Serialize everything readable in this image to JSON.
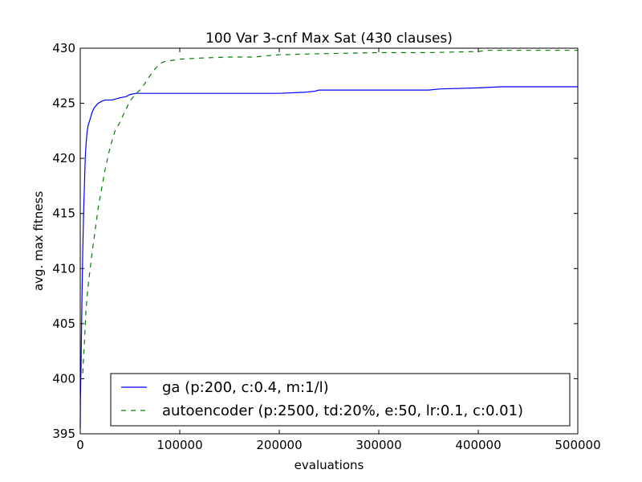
{
  "chart_data": {
    "type": "line",
    "title": "100 Var 3-cnf Max Sat (430 clauses)",
    "xlabel": "evaluations",
    "ylabel": "avg. max fitness",
    "xlim": [
      0,
      500000
    ],
    "ylim": [
      395,
      430
    ],
    "xticks": [
      0,
      100000,
      200000,
      300000,
      400000,
      500000
    ],
    "yticks": [
      395,
      400,
      405,
      410,
      415,
      420,
      425,
      430
    ],
    "grid": false,
    "legend": "lower-center",
    "series": [
      {
        "name": "ga (p:200, c:0.4, m:1/l)",
        "color": "#0000ff",
        "style": "solid",
        "x": [
          0,
          200,
          400,
          800,
          1200,
          1600,
          2000,
          2500,
          3000,
          3500,
          4000,
          4500,
          5000,
          6000,
          7000,
          8000,
          9000,
          10000,
          12000,
          14000,
          16000,
          18000,
          20000,
          22000,
          25000,
          28000,
          32000,
          36000,
          40000,
          46000,
          50000,
          56000,
          60000,
          100000,
          150000,
          200000,
          225000,
          236000,
          240000,
          300000,
          350000,
          362000,
          400000,
          424000,
          460000,
          500000
        ],
        "y": [
          395.5,
          398,
          399.5,
          401,
          404,
          406.5,
          409,
          411.5,
          413.5,
          415.5,
          417,
          418.5,
          420,
          421.5,
          422.5,
          423,
          423.3,
          423.6,
          424.2,
          424.6,
          424.8,
          425,
          425.1,
          425.2,
          425.3,
          425.3,
          425.3,
          425.4,
          425.5,
          425.6,
          425.8,
          425.9,
          425.9,
          425.9,
          425.9,
          425.9,
          426,
          426.1,
          426.2,
          426.2,
          426.2,
          426.3,
          426.4,
          426.5,
          426.5,
          426.5
        ]
      },
      {
        "name": "autoencoder (p:2500, td:20%, e:50, lr:0.1, c:0.01)",
        "color": "#008000",
        "style": "dashed",
        "x": [
          2500,
          4000,
          6000,
          8000,
          10000,
          12000,
          15000,
          18000,
          20000,
          25000,
          30000,
          35000,
          40000,
          45000,
          50000,
          55000,
          60000,
          65000,
          70000,
          75000,
          80000,
          85000,
          100000,
          120000,
          150000,
          175000,
          185000,
          200000,
          240000,
          300000,
          350000,
          400000,
          410000,
          450000,
          500000
        ],
        "y": [
          400.5,
          403,
          406.5,
          408.5,
          410,
          411.5,
          413.5,
          415.5,
          416.5,
          419,
          421,
          422.5,
          423.3,
          424.3,
          425.2,
          425.8,
          426.2,
          426.8,
          427.5,
          428.1,
          428.6,
          428.8,
          429.0,
          429.1,
          429.2,
          429.2,
          429.3,
          429.4,
          429.5,
          429.6,
          429.6,
          429.7,
          429.8,
          429.8,
          429.8
        ]
      }
    ]
  }
}
